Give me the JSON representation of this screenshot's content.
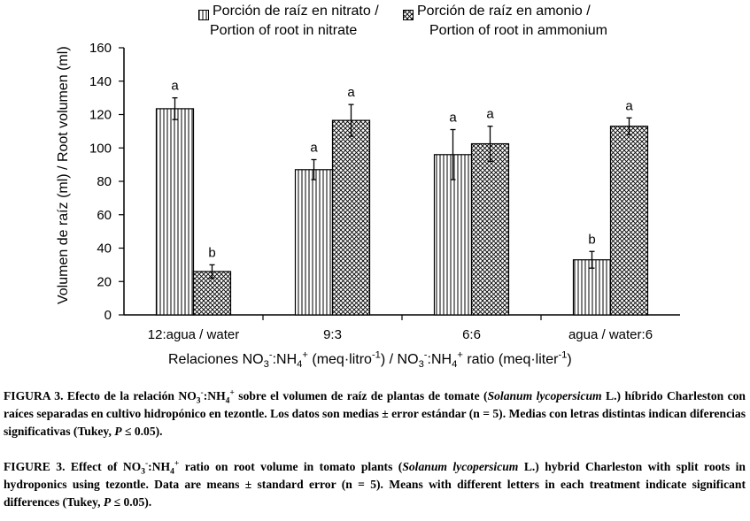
{
  "chart_data": {
    "type": "bar",
    "categories": [
      "12:agua / water",
      "9:3",
      "6:6",
      "agua / water:6"
    ],
    "series": [
      {
        "name": "Porción de raíz en nitrato / Portion of root in nitrate",
        "pattern": "vertical-lines",
        "values": [
          123.5,
          87,
          96,
          33
        ],
        "errors": [
          6.5,
          6,
          15,
          5
        ],
        "letters": [
          "a",
          "a",
          "a",
          "b"
        ]
      },
      {
        "name": "Porción de raíz en amonio / Portion of root in ammonium",
        "pattern": "crosshatch",
        "values": [
          26,
          116.5,
          102.5,
          113
        ],
        "errors": [
          4,
          9.5,
          10.5,
          5
        ],
        "letters": [
          "b",
          "a",
          "a",
          "a"
        ]
      }
    ],
    "ylim": [
      0,
      160
    ],
    "yticks": [
      0,
      20,
      40,
      60,
      80,
      100,
      120,
      140,
      160
    ],
    "ylabel": "Volumen de raíz (ml) / Root volumen (ml)",
    "xlabel_parts": {
      "a": "Relaciones NO",
      "a_sub": "3",
      "a_sup": "-",
      "b": ":NH",
      "b_sub": "4",
      "b_sup": "+",
      "c": " (meq·litro",
      "c_sup": "-1",
      "d": ") / NO",
      "d_sub": "3",
      "d_sup": "-",
      "e": ":NH",
      "e_sub": "4",
      "e_sup": "+",
      "f": " ratio (meq·liter",
      "f_sup": "-1",
      "g": ")"
    },
    "legend": {
      "nitrate_line1": "Porción de raíz en nitrato /",
      "nitrate_line2": "Portion of root in nitrate",
      "ammonium_line1": "Porción de raíz en amonio /",
      "ammonium_line2": "Portion of root in ammonium"
    }
  },
  "captions": {
    "es": {
      "label": "FIGURA 3.",
      "t1": " Efecto de la relación NO",
      "t2": ":NH",
      "t3": " sobre el volumen de raíz de plantas de tomate (",
      "species": "Solanum lycopersicum",
      "t4": " L.) híbrido Charleston con raíces separadas en cultivo hidropónico en tezontle. Los datos son medias ± error estándar (n = 5). Medias con letras distintas indican diferencias significativas (Tukey, ",
      "p": "P",
      "t5": " ≤ 0.05)."
    },
    "en": {
      "label": "FIGURE 3.",
      "t1": " Effect of NO",
      "t2": ":NH",
      "t3": " ratio on root volume in tomato plants (",
      "species": "Solanum lycopersicum",
      "t4": " L.) hybrid Charleston with split roots in hydroponics using tezontle. Data are means ± standard error (n = 5). Means with different letters in each treatment indicate significant differences (Tukey, ",
      "p": "P",
      "t5": " ≤ 0.05)."
    },
    "sub3": "3",
    "sup_minus": "-",
    "sub4": "4",
    "sup_plus": "+"
  }
}
